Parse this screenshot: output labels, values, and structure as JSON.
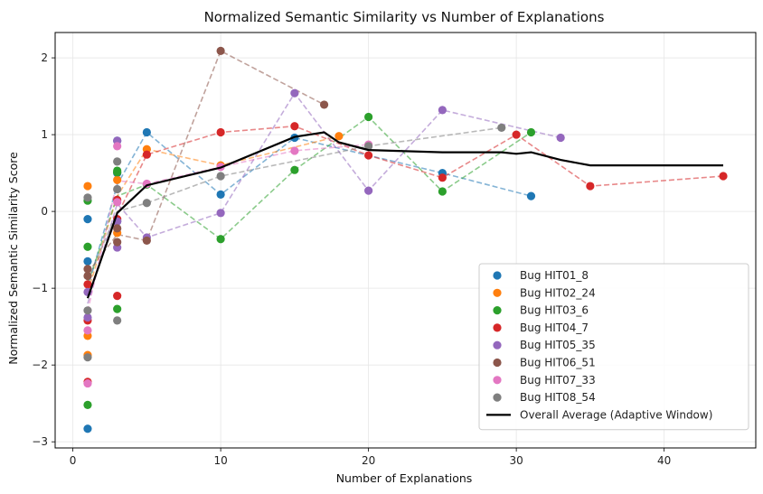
{
  "chart_data": {
    "type": "scatter",
    "title": "Normalized Semantic Similarity vs Number of Explanations",
    "xlabel": "Number of Explanations",
    "ylabel": "Normalized Semantic Similarity Score",
    "xlim": [
      -1.2,
      46.2
    ],
    "ylim": [
      -3.08,
      2.33
    ],
    "xticks": [
      0,
      10,
      20,
      30,
      40
    ],
    "yticks": [
      -3,
      -2,
      -1,
      0,
      1,
      2
    ],
    "grid": true,
    "legend_position": "lower-right",
    "series": [
      {
        "name": "Bug HIT01_8",
        "color": "#1f77b4",
        "points": [
          [
            1,
            -2.83
          ],
          [
            1,
            -0.65
          ],
          [
            1,
            -0.1
          ],
          [
            3,
            0.5
          ],
          [
            3,
            0.92
          ],
          [
            3,
            -0.13
          ],
          [
            5,
            1.03
          ],
          [
            10,
            0.22
          ],
          [
            15,
            0.96
          ],
          [
            25,
            0.5
          ],
          [
            31,
            0.2
          ]
        ],
        "line": [
          [
            1,
            -1.0
          ],
          [
            3,
            0.35
          ],
          [
            5,
            1.03
          ],
          [
            10,
            0.22
          ],
          [
            15,
            0.96
          ],
          [
            25,
            0.5
          ],
          [
            31,
            0.2
          ]
        ]
      },
      {
        "name": "Bug HIT02_24",
        "color": "#ff7f0e",
        "points": [
          [
            1,
            0.33
          ],
          [
            1,
            -1.62
          ],
          [
            1,
            -1.87
          ],
          [
            3,
            0.41
          ],
          [
            3,
            -0.28
          ],
          [
            5,
            0.81
          ],
          [
            10,
            0.6
          ],
          [
            18,
            0.98
          ]
        ],
        "line": [
          [
            1,
            -1.05
          ],
          [
            3,
            0.2
          ],
          [
            5,
            0.81
          ],
          [
            10,
            0.6
          ],
          [
            18,
            0.98
          ]
        ]
      },
      {
        "name": "Bug HIT03_6",
        "color": "#2ca02c",
        "points": [
          [
            1,
            0.14
          ],
          [
            1,
            -0.46
          ],
          [
            1,
            -2.52
          ],
          [
            3,
            0.53
          ],
          [
            3,
            0.51
          ],
          [
            3,
            -1.27
          ],
          [
            5,
            0.35
          ],
          [
            10,
            -0.36
          ],
          [
            15,
            0.54
          ],
          [
            20,
            1.23
          ],
          [
            25,
            0.26
          ],
          [
            31,
            1.03
          ]
        ],
        "line": [
          [
            1,
            -0.95
          ],
          [
            3,
            0.2
          ],
          [
            5,
            0.35
          ],
          [
            10,
            -0.36
          ],
          [
            15,
            0.54
          ],
          [
            20,
            1.23
          ],
          [
            25,
            0.26
          ],
          [
            31,
            1.03
          ]
        ]
      },
      {
        "name": "Bug HIT04_7",
        "color": "#d62728",
        "points": [
          [
            1,
            -0.95
          ],
          [
            1,
            -1.42
          ],
          [
            1,
            -2.22
          ],
          [
            3,
            -1.1
          ],
          [
            3,
            0.15
          ],
          [
            3,
            -0.1
          ],
          [
            5,
            0.74
          ],
          [
            10,
            1.03
          ],
          [
            15,
            1.11
          ],
          [
            20,
            0.73
          ],
          [
            25,
            0.44
          ],
          [
            30,
            1.0
          ],
          [
            35,
            0.33
          ],
          [
            44,
            0.46
          ]
        ],
        "line": [
          [
            1,
            -1.1
          ],
          [
            3,
            -0.05
          ],
          [
            5,
            0.74
          ],
          [
            10,
            1.03
          ],
          [
            15,
            1.11
          ],
          [
            20,
            0.73
          ],
          [
            25,
            0.44
          ],
          [
            30,
            1.0
          ],
          [
            35,
            0.33
          ],
          [
            44,
            0.46
          ]
        ]
      },
      {
        "name": "Bug HIT05_35",
        "color": "#9467bd",
        "points": [
          [
            1,
            -1.38
          ],
          [
            1,
            -1.05
          ],
          [
            3,
            0.92
          ],
          [
            3,
            -0.47
          ],
          [
            3,
            -0.13
          ],
          [
            5,
            -0.34
          ],
          [
            10,
            -0.02
          ],
          [
            15,
            1.54
          ],
          [
            20,
            0.27
          ],
          [
            25,
            1.32
          ],
          [
            33,
            0.96
          ]
        ],
        "line": [
          [
            1,
            -1.2
          ],
          [
            3,
            0.1
          ],
          [
            5,
            -0.34
          ],
          [
            10,
            -0.02
          ],
          [
            15,
            1.54
          ],
          [
            20,
            0.27
          ],
          [
            25,
            1.32
          ],
          [
            33,
            0.96
          ]
        ]
      },
      {
        "name": "Bug HIT06_51",
        "color": "#8c564b",
        "points": [
          [
            1,
            -0.75
          ],
          [
            1,
            -0.84
          ],
          [
            3,
            -0.22
          ],
          [
            3,
            -0.4
          ],
          [
            5,
            -0.38
          ],
          [
            10,
            2.09
          ],
          [
            17,
            1.39
          ]
        ],
        "line": [
          [
            1,
            -0.8
          ],
          [
            3,
            -0.3
          ],
          [
            5,
            -0.38
          ],
          [
            10,
            2.09
          ],
          [
            17,
            1.39
          ]
        ]
      },
      {
        "name": "Bug HIT07_33",
        "color": "#e377c2",
        "points": [
          [
            1,
            -1.55
          ],
          [
            1,
            -2.24
          ],
          [
            3,
            0.85
          ],
          [
            3,
            0.12
          ],
          [
            5,
            0.36
          ],
          [
            10,
            0.58
          ],
          [
            15,
            0.79
          ],
          [
            20,
            0.87
          ]
        ],
        "line": [
          [
            1,
            -1.3
          ],
          [
            3,
            0.4
          ],
          [
            5,
            0.36
          ],
          [
            10,
            0.58
          ],
          [
            15,
            0.79
          ],
          [
            20,
            0.87
          ]
        ]
      },
      {
        "name": "Bug HIT08_54",
        "color": "#7f7f7f",
        "points": [
          [
            1,
            0.18
          ],
          [
            1,
            -1.29
          ],
          [
            1,
            -1.9
          ],
          [
            3,
            0.65
          ],
          [
            3,
            0.29
          ],
          [
            3,
            -1.42
          ],
          [
            5,
            0.11
          ],
          [
            10,
            0.46
          ],
          [
            20,
            0.85
          ],
          [
            29,
            1.09
          ]
        ],
        "line": [
          [
            1,
            -0.9
          ],
          [
            3,
            0.0
          ],
          [
            5,
            0.11
          ],
          [
            10,
            0.46
          ],
          [
            20,
            0.85
          ],
          [
            29,
            1.09
          ]
        ]
      }
    ],
    "average": {
      "name": "Overall Average (Adaptive Window)",
      "color": "#000000",
      "points": [
        [
          1,
          -1.13
        ],
        [
          3,
          -0.02
        ],
        [
          5,
          0.34
        ],
        [
          10,
          0.57
        ],
        [
          15,
          0.97
        ],
        [
          17,
          1.03
        ],
        [
          18,
          0.9
        ],
        [
          20,
          0.8
        ],
        [
          25,
          0.77
        ],
        [
          29,
          0.77
        ],
        [
          30,
          0.75
        ],
        [
          31,
          0.77
        ],
        [
          33,
          0.67
        ],
        [
          35,
          0.6
        ],
        [
          44,
          0.6
        ]
      ]
    }
  }
}
